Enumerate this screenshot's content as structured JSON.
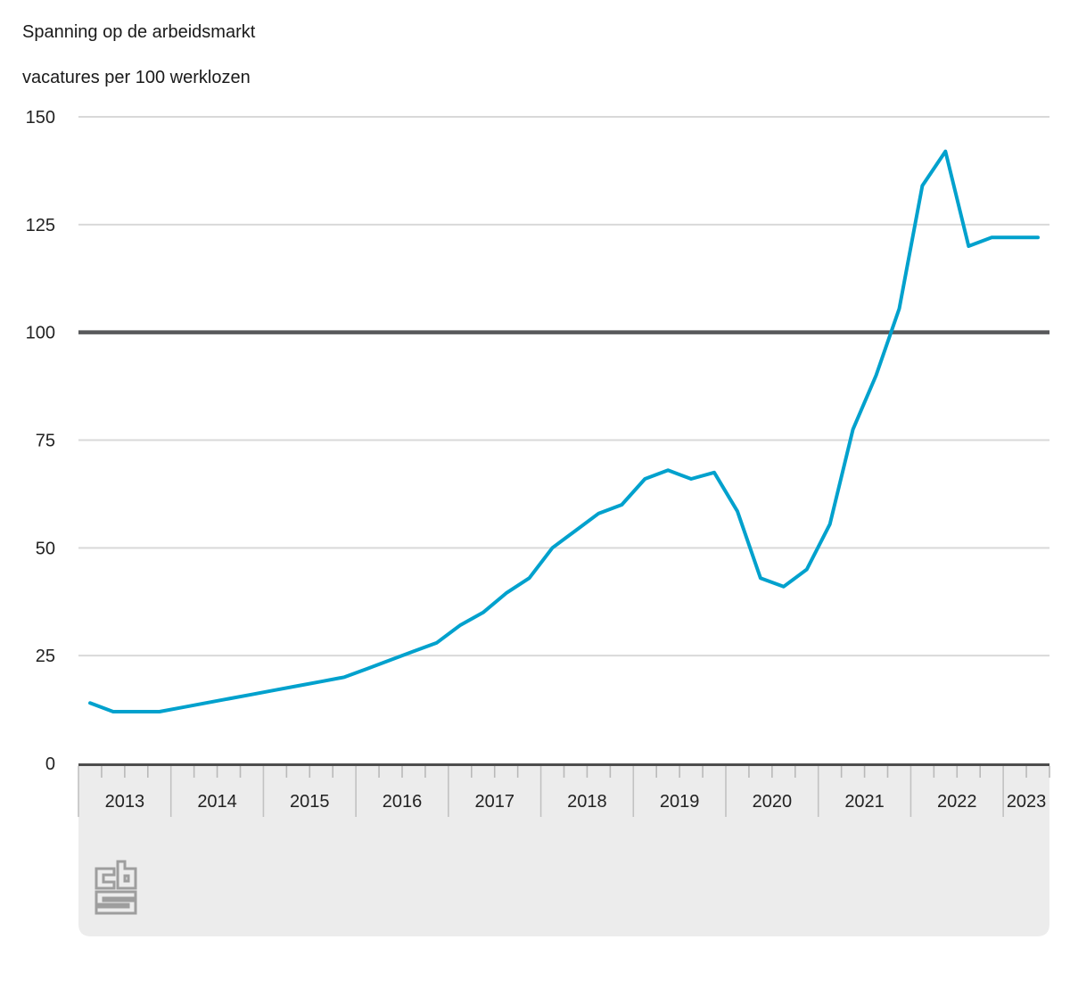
{
  "title": "Spanning op de arbeidsmarkt",
  "subtitle": "vacatures per 100 werklozen",
  "branding": {
    "logo": "cbs-logo"
  },
  "colors": {
    "line": "#00a1cd",
    "reference_line": "#58595b",
    "gridline": "#d9d9d9",
    "axis_band_bg": "#ececec",
    "axis_band_border": "#4d4d4d",
    "tick": "#b9b9b9",
    "year_tick": "#c2c2c2",
    "text": "#222222",
    "logo": "#9e9e9e",
    "background": "#ffffff"
  },
  "chart_data": {
    "type": "line",
    "title": "Spanning op de arbeidsmarkt",
    "subtitle": "vacatures per 100 werklozen",
    "frequency": "quarterly",
    "x_years": [
      "2013",
      "2014",
      "2015",
      "2016",
      "2017",
      "2018",
      "2019",
      "2020",
      "2021",
      "2022",
      "2023"
    ],
    "x_range": [
      "2013 Q1",
      "2023 Q2"
    ],
    "quarters_per_year": 4,
    "last_year_quarters": 2,
    "y_ticks": [
      0,
      25,
      50,
      75,
      100,
      125,
      150
    ],
    "ylim": [
      0,
      150
    ],
    "reference_line": 100,
    "grid": "horizontal",
    "legend": "none",
    "series": [
      {
        "name": "vacatures per 100 werklozen",
        "values": [
          14,
          12,
          12,
          12,
          13,
          14,
          15,
          16,
          17,
          18,
          19,
          20,
          22,
          24,
          26,
          28,
          32,
          35,
          39.5,
          43,
          50,
          54,
          58,
          60,
          66,
          68,
          66,
          67.5,
          58.5,
          43,
          41,
          45,
          55.5,
          77.5,
          90,
          105.5,
          134,
          142,
          120,
          122,
          122,
          122
        ]
      }
    ]
  }
}
